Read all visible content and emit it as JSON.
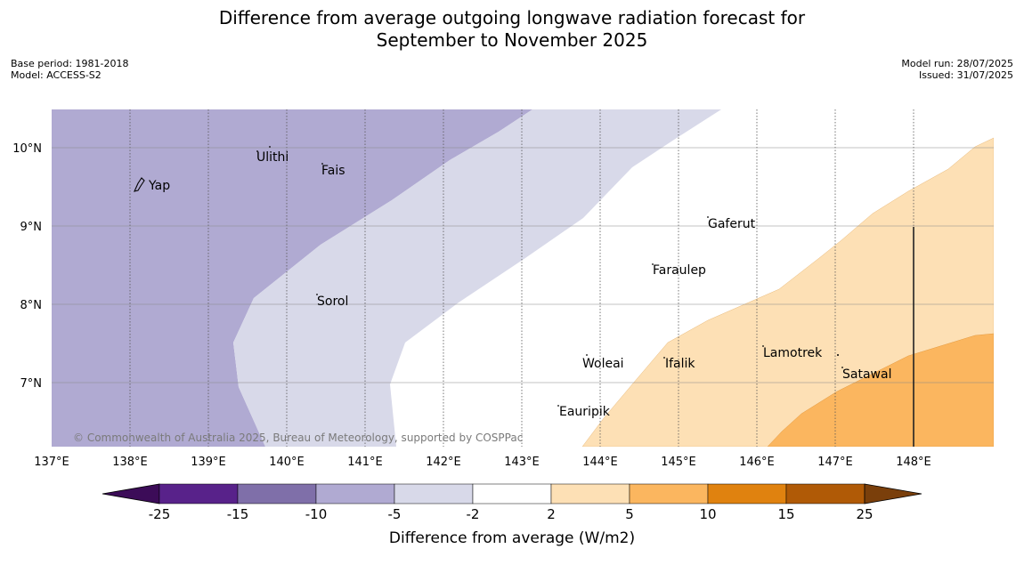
{
  "title_line1": "Difference from average outgoing longwave radiation forecast for",
  "title_line2": "September to November 2025",
  "meta_left": {
    "base_period": "Base period: 1981-2018",
    "model": "Model: ACCESS-S2"
  },
  "meta_right": {
    "model_run": "Model run: 28/07/2025",
    "issued": "Issued: 31/07/2025"
  },
  "map": {
    "lon_ticks": [
      "137°E",
      "138°E",
      "139°E",
      "140°E",
      "141°E",
      "142°E",
      "143°E",
      "144°E",
      "145°E",
      "146°E",
      "147°E",
      "148°E"
    ],
    "lat_ticks": [
      "10°N",
      "9°N",
      "8°N",
      "7°N"
    ],
    "islands": [
      "Yap",
      "Ulithi",
      "Fais",
      "Gaferut",
      "Faraulep",
      "Sorol",
      "Woleai",
      "Ifalik",
      "Lamotrek",
      "Satawal",
      "Eauripik"
    ],
    "copyright": "© Commonwealth of Australia 2025, Bureau of Meteorology, supported by COSPPac",
    "colors": {
      "neg_10_to_5": "#b0aad2",
      "neg_5_to_2": "#d8d9e9",
      "pos_2_to_5": "#fde0b5",
      "pos_5_to_10": "#fbb65f"
    }
  },
  "colorbar": {
    "title": "Difference from average (W/m2)",
    "ticks": [
      "-25",
      "-15",
      "-10",
      "-5",
      "-2",
      "2",
      "5",
      "10",
      "15",
      "25"
    ],
    "colors": [
      "#3c0c58",
      "#58228a",
      "#7f6fa9",
      "#b0aad2",
      "#d8d9e9",
      "#ffffff",
      "#fde0b5",
      "#fbb65f",
      "#e0820f",
      "#b05a06",
      "#7a3f0b"
    ]
  }
}
